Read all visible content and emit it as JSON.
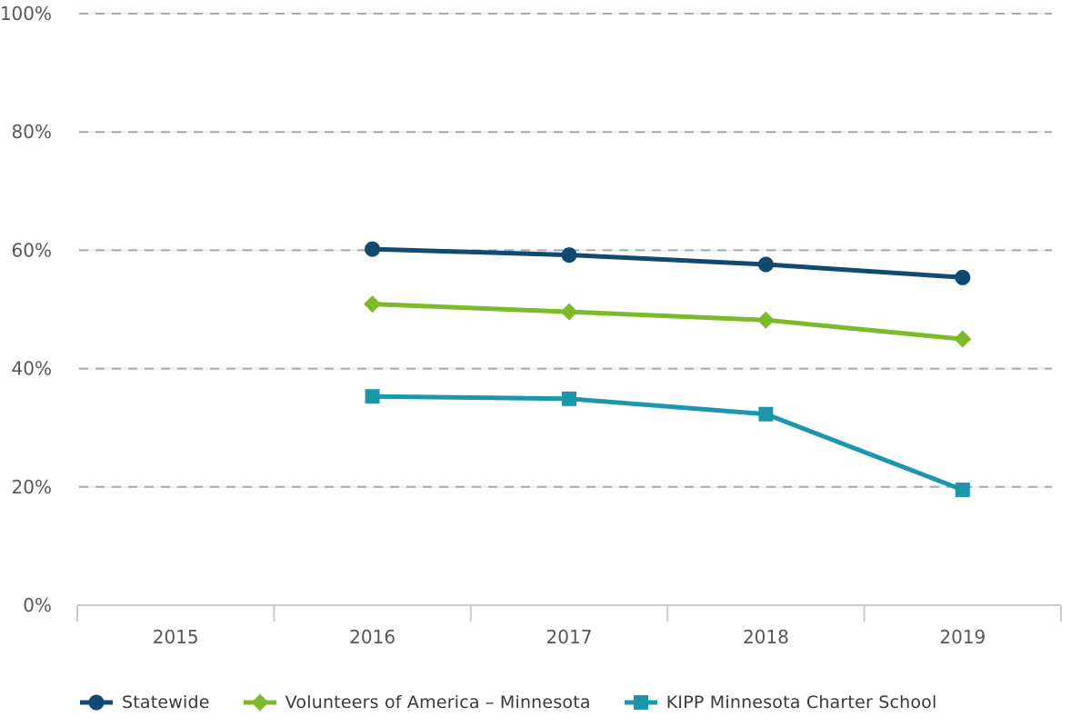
{
  "chart_data": {
    "type": "line",
    "title": "",
    "xlabel": "",
    "ylabel": "",
    "categories": [
      "2015",
      "2016",
      "2017",
      "2018",
      "2019"
    ],
    "y_axis": {
      "unit": "%",
      "range": [
        0,
        100
      ],
      "ticks": [
        0,
        20,
        40,
        60,
        80,
        100
      ],
      "tick_labels": [
        "0%",
        "20%",
        "40%",
        "60%",
        "80%",
        "100%"
      ],
      "gridlines": "dashed horizontal at 20% intervals, none at 0%"
    },
    "series": [
      {
        "name": "Statewide",
        "color": "#104a72",
        "marker": "circle",
        "values": [
          null,
          60.2,
          59.2,
          57.6,
          55.4
        ]
      },
      {
        "name": "Volunteers of America – Minnesota",
        "color": "#7dba29",
        "marker": "diamond",
        "values": [
          null,
          50.9,
          49.6,
          48.2,
          45.0
        ]
      },
      {
        "name": "KIPP Minnesota Charter School",
        "color": "#1b96ab",
        "marker": "square",
        "values": [
          null,
          35.3,
          34.9,
          32.3,
          19.5
        ]
      }
    ],
    "legend": {
      "position": "bottom"
    },
    "style": {
      "grid_dash_color": "#a9a9a9",
      "grid_halo_color": "#ececec",
      "axis_color": "#c3ccd4",
      "tick_label_color": "#57585c",
      "legend_text_color": "#39393b",
      "background": "#ffffff"
    }
  }
}
